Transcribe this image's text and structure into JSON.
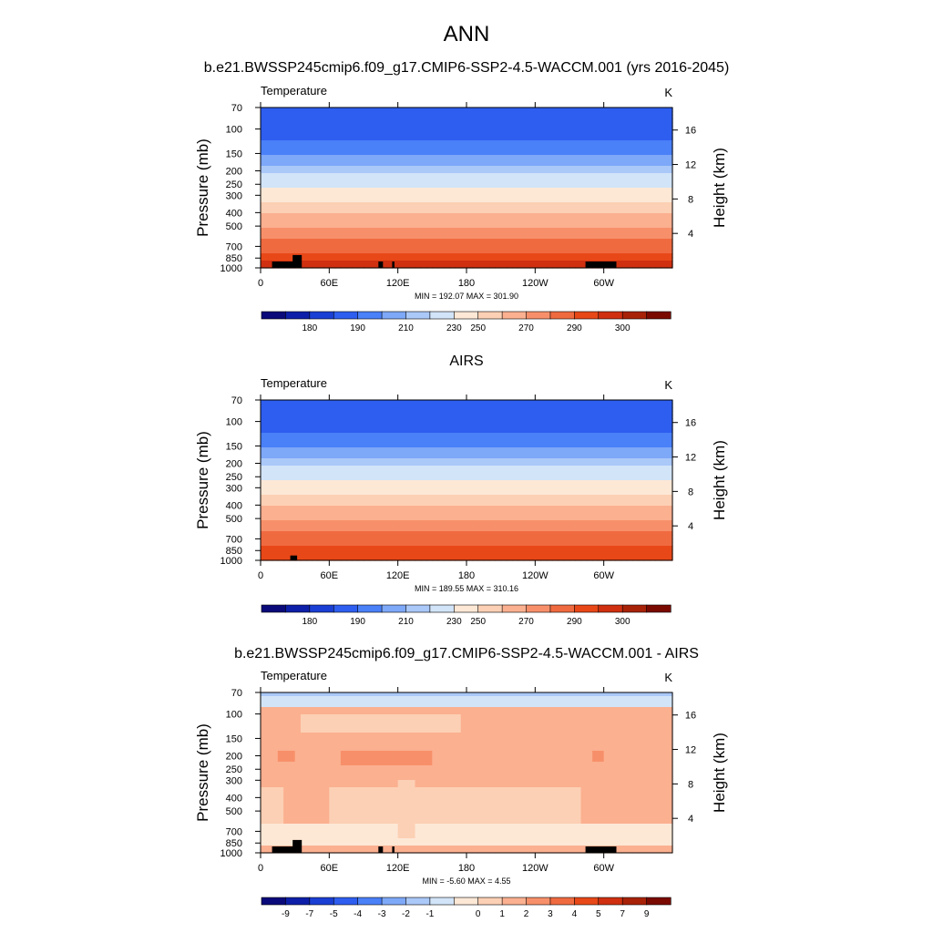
{
  "figure": {
    "title": "ANN",
    "subtitle_1": "b.e21.BWSSP245cmip6.f09_g17.CMIP6-SSP2-4.5-WACCM.001 (yrs 2016-2045)",
    "subtitle_2": "AIRS",
    "subtitle_3": "b.e21.BWSSP245cmip6.f09_g17.CMIP6-SSP2-4.5-WACCM.001 - AIRS"
  },
  "chart_data": [
    {
      "type": "heatmap",
      "panel_label": "Temperature",
      "units": "K",
      "xlabel": "",
      "ylabel": "Pressure (mb)",
      "ylabel_right": "Height (km)",
      "x_ticks": [
        "0",
        "60E",
        "120E",
        "180",
        "120W",
        "60W"
      ],
      "x_tick_values": [
        0,
        60,
        120,
        180,
        240,
        300
      ],
      "xlim": [
        0,
        360
      ],
      "y_ticks": [
        "70",
        "100",
        "150",
        "200",
        "250",
        "300",
        "400",
        "500",
        "700",
        "850",
        "1000"
      ],
      "y_tick_values": [
        70,
        100,
        150,
        200,
        250,
        300,
        400,
        500,
        700,
        850,
        1000
      ],
      "ylim": [
        1000,
        70
      ],
      "y_scale": "log",
      "right_ticks": [
        "16",
        "12",
        "8",
        "4"
      ],
      "right_tick_values": [
        16,
        12,
        8,
        4
      ],
      "stats": "MIN = 192.07  MAX = 301.90",
      "colorbar": {
        "labels": [
          "180",
          "190",
          "210",
          "230",
          "250",
          "270",
          "290",
          "300"
        ],
        "colors": [
          "#0a0a7a",
          "#0d1fa8",
          "#1a3fd4",
          "#2e5ef0",
          "#4a80f8",
          "#7ea8f8",
          "#aac8f8",
          "#d2e4f8",
          "#fde8d6",
          "#fcd0b4",
          "#fbb090",
          "#f7906a",
          "#f06a40",
          "#e84818",
          "#d03010",
          "#a82208",
          "#7a0a00"
        ]
      }
    },
    {
      "type": "heatmap",
      "panel_label": "Temperature",
      "units": "K",
      "xlabel": "",
      "ylabel": "Pressure (mb)",
      "ylabel_right": "Height (km)",
      "x_ticks": [
        "0",
        "60E",
        "120E",
        "180",
        "120W",
        "60W"
      ],
      "x_tick_values": [
        0,
        60,
        120,
        180,
        240,
        300
      ],
      "xlim": [
        0,
        360
      ],
      "y_ticks": [
        "70",
        "100",
        "150",
        "200",
        "250",
        "300",
        "400",
        "500",
        "700",
        "850",
        "1000"
      ],
      "y_tick_values": [
        70,
        100,
        150,
        200,
        250,
        300,
        400,
        500,
        700,
        850,
        1000
      ],
      "ylim": [
        1000,
        70
      ],
      "y_scale": "log",
      "right_ticks": [
        "16",
        "12",
        "8",
        "4"
      ],
      "right_tick_values": [
        16,
        12,
        8,
        4
      ],
      "stats": "MIN = 189.55  MAX = 310.16",
      "colorbar": {
        "labels": [
          "180",
          "190",
          "210",
          "230",
          "250",
          "270",
          "290",
          "300"
        ],
        "colors": [
          "#0a0a7a",
          "#0d1fa8",
          "#1a3fd4",
          "#2e5ef0",
          "#4a80f8",
          "#7ea8f8",
          "#aac8f8",
          "#d2e4f8",
          "#fde8d6",
          "#fcd0b4",
          "#fbb090",
          "#f7906a",
          "#f06a40",
          "#e84818",
          "#d03010",
          "#a82208",
          "#7a0a00"
        ]
      }
    },
    {
      "type": "heatmap",
      "panel_label": "Temperature",
      "units": "K",
      "xlabel": "",
      "ylabel": "Pressure (mb)",
      "ylabel_right": "Height (km)",
      "x_ticks": [
        "0",
        "60E",
        "120E",
        "180",
        "120W",
        "60W"
      ],
      "x_tick_values": [
        0,
        60,
        120,
        180,
        240,
        300
      ],
      "xlim": [
        0,
        360
      ],
      "y_ticks": [
        "70",
        "100",
        "150",
        "200",
        "250",
        "300",
        "400",
        "500",
        "700",
        "850",
        "1000"
      ],
      "y_tick_values": [
        70,
        100,
        150,
        200,
        250,
        300,
        400,
        500,
        700,
        850,
        1000
      ],
      "ylim": [
        1000,
        70
      ],
      "y_scale": "log",
      "right_ticks": [
        "16",
        "12",
        "8",
        "4"
      ],
      "right_tick_values": [
        16,
        12,
        8,
        4
      ],
      "stats": "MIN =  -5.60  MAX =   4.55",
      "colorbar": {
        "labels": [
          "-9",
          "-7",
          "-5",
          "-4",
          "-3",
          "-2",
          "-1",
          "0",
          "1",
          "2",
          "3",
          "4",
          "5",
          "7",
          "9"
        ],
        "colors": [
          "#0a0a7a",
          "#0d1fa8",
          "#1a3fd4",
          "#2e5ef0",
          "#4a80f8",
          "#7ea8f8",
          "#aac8f8",
          "#d2e4f8",
          "#fde8d6",
          "#fcd0b4",
          "#fbb090",
          "#f7906a",
          "#f06a40",
          "#e84818",
          "#d03010",
          "#a82208",
          "#7a0a00"
        ]
      }
    }
  ]
}
